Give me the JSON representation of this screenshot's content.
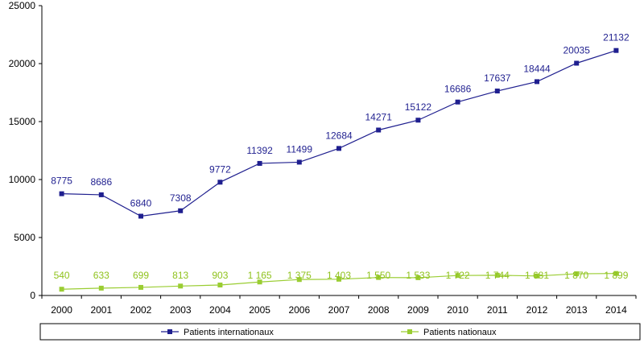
{
  "chart_data": {
    "type": "line",
    "title": "",
    "xlabel": "",
    "ylabel": "",
    "x": [
      "2000",
      "2001",
      "2002",
      "2003",
      "2004",
      "2005",
      "2006",
      "2007",
      "2008",
      "2009",
      "2010",
      "2011",
      "2012",
      "2013",
      "2014"
    ],
    "ylim": [
      0,
      25000
    ],
    "yticks": [
      0,
      5000,
      10000,
      15000,
      20000,
      25000
    ],
    "grid": false,
    "legend_position": "bottom",
    "series": [
      {
        "name": "Patients internationaux",
        "color": "#1f1f8f",
        "marker": "square",
        "values": [
          8775,
          8686,
          6840,
          7308,
          9772,
          11392,
          11499,
          12684,
          14271,
          15122,
          16686,
          17637,
          18444,
          20035,
          21132
        ],
        "labels": [
          "8775",
          "8686",
          "6840",
          "7308",
          "9772",
          "11392",
          "11499",
          "12684",
          "14271",
          "15122",
          "16686",
          "17637",
          "18444",
          "20035",
          "21132"
        ]
      },
      {
        "name": "Patients nationaux",
        "color": "#9acd32",
        "marker": "square",
        "values": [
          540,
          633,
          699,
          813,
          903,
          1165,
          1375,
          1403,
          1550,
          1533,
          1722,
          1744,
          1681,
          1870,
          1899
        ],
        "labels": [
          "540",
          "633",
          "699",
          "813",
          "903",
          "1 165",
          "1 375",
          "1 403",
          "1 550",
          "1 533",
          "1 722",
          "1 744",
          "1 681",
          "1 870",
          "1 899"
        ]
      }
    ]
  }
}
